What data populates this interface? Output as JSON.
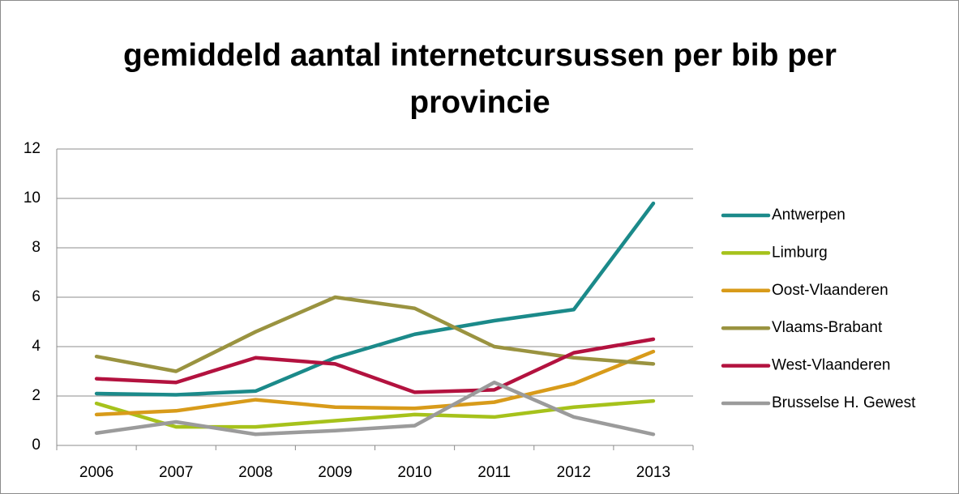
{
  "chart_data": {
    "type": "line",
    "title": "gemiddeld aantal internetcursussen per bib per provincie",
    "categories": [
      "2006",
      "2007",
      "2008",
      "2009",
      "2010",
      "2011",
      "2012",
      "2013"
    ],
    "series": [
      {
        "name": "Antwerpen",
        "color": "#1b8a8a",
        "values": [
          2.1,
          2.05,
          2.2,
          3.55,
          4.5,
          5.05,
          5.5,
          9.8
        ]
      },
      {
        "name": "Limburg",
        "color": "#a6c21b",
        "values": [
          1.7,
          0.75,
          0.75,
          1.0,
          1.25,
          1.15,
          1.55,
          1.8
        ]
      },
      {
        "name": "Oost-Vlaanderen",
        "color": "#d89b1a",
        "values": [
          1.25,
          1.4,
          1.85,
          1.55,
          1.5,
          1.75,
          2.5,
          3.8
        ]
      },
      {
        "name": "Vlaams-Brabant",
        "color": "#9a9340",
        "values": [
          3.6,
          3.0,
          4.6,
          6.0,
          5.55,
          4.0,
          3.55,
          3.3
        ]
      },
      {
        "name": "West-Vlaanderen",
        "color": "#b3123f",
        "values": [
          2.7,
          2.55,
          3.55,
          3.3,
          2.15,
          2.25,
          3.75,
          4.3
        ]
      },
      {
        "name": "Brusselse H. Gewest",
        "color": "#9b9b9b",
        "values": [
          0.5,
          0.95,
          0.45,
          0.6,
          0.8,
          2.55,
          1.15,
          0.45
        ]
      }
    ],
    "ylim": [
      0,
      12
    ],
    "yticks": [
      0,
      2,
      4,
      6,
      8,
      10,
      12
    ],
    "grid": true,
    "legend": "right"
  }
}
